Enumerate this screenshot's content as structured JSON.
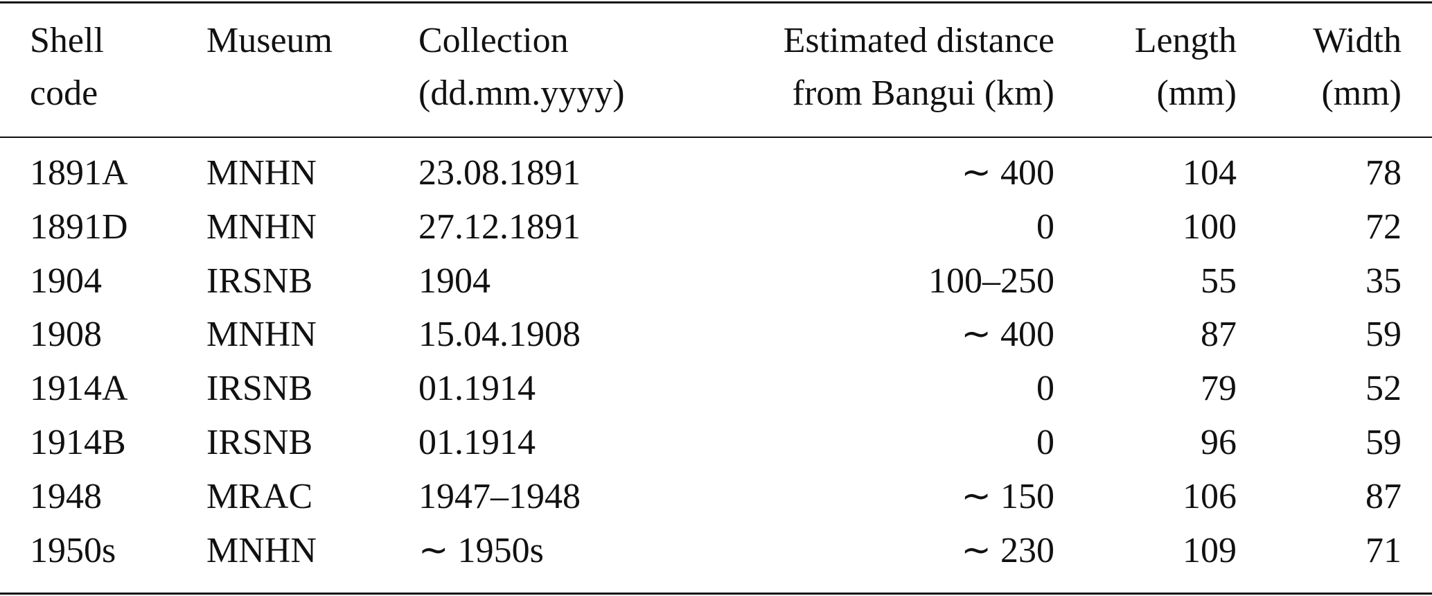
{
  "table": {
    "header": [
      [
        "Shell",
        "code"
      ],
      [
        "Museum"
      ],
      [
        "Collection",
        "(dd.mm.yyyy)"
      ],
      [
        "Estimated distance",
        "from Bangui (km)"
      ],
      [
        "Length",
        "(mm)"
      ],
      [
        "Width",
        "(mm)"
      ]
    ],
    "rows": [
      [
        "1891A",
        "MNHN",
        "23.08.1891",
        "∼ 400",
        "104",
        "78"
      ],
      [
        "1891D",
        "MNHN",
        "27.12.1891",
        "0",
        "100",
        "72"
      ],
      [
        "1904",
        "IRSNB",
        "1904",
        "100–250",
        "55",
        "35"
      ],
      [
        "1908",
        "MNHN",
        "15.04.1908",
        "∼ 400",
        "87",
        "59"
      ],
      [
        "1914A",
        "IRSNB",
        "01.1914",
        "0",
        "79",
        "52"
      ],
      [
        "1914B",
        "IRSNB",
        "01.1914",
        "0",
        "96",
        "59"
      ],
      [
        "1948",
        "MRAC",
        "1947–1948",
        "∼ 150",
        "106",
        "87"
      ],
      [
        "1950s",
        "MNHN",
        "∼ 1950s",
        "∼ 230",
        "109",
        "71"
      ]
    ]
  }
}
